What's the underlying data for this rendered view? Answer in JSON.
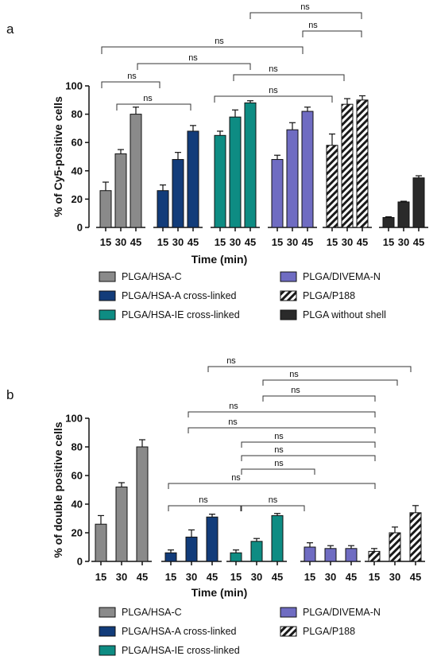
{
  "chart_data": [
    {
      "panel": "a",
      "type": "bar",
      "ylabel": "% of Cy5-positive cells",
      "xlabel": "Time (min)",
      "yticks": [
        0,
        20,
        40,
        60,
        80,
        100
      ],
      "ylim": [
        0,
        100
      ],
      "categories": [
        "15",
        "30",
        "45"
      ],
      "series": [
        {
          "name": "PLGA/HSA-C",
          "color": "#8a8a8a",
          "pattern": "solid",
          "values": [
            26,
            52,
            80
          ],
          "errors": [
            6,
            3,
            5
          ]
        },
        {
          "name": "PLGA/HSA-A cross-linked",
          "color": "#123c7a",
          "pattern": "solid",
          "values": [
            26,
            48,
            68
          ],
          "errors": [
            4,
            5,
            4
          ]
        },
        {
          "name": "PLGA/HSA-IE cross-linked",
          "color": "#0e8c83",
          "pattern": "solid",
          "values": [
            65,
            78,
            88
          ],
          "errors": [
            3,
            5,
            1.5
          ]
        },
        {
          "name": "PLGA/DIVEMA-N",
          "color": "#6f6cc2",
          "pattern": "solid",
          "values": [
            48,
            69,
            82
          ],
          "errors": [
            3,
            5,
            3
          ]
        },
        {
          "name": "PLGA/P188",
          "color": "#1a1a1a",
          "pattern": "hatch",
          "values": [
            58,
            87,
            90
          ],
          "errors": [
            8,
            4,
            3
          ]
        },
        {
          "name": "PLGA without shell",
          "color": "#2a2a2a",
          "pattern": "solid",
          "values": [
            7,
            18,
            35
          ],
          "errors": [
            0.5,
            0.5,
            1.5
          ]
        }
      ],
      "annotations": [
        {
          "label": "ns",
          "from": [
            0,
            1
          ],
          "to": [
            0,
            2
          ]
        },
        {
          "label": "ns",
          "from": [
            0,
            0
          ],
          "to": [
            0,
            2
          ]
        },
        {
          "label": "ns",
          "from": [
            0,
            1
          ],
          "to": [
            2,
            1
          ]
        },
        {
          "label": "ns",
          "from": [
            2,
            0
          ],
          "to": [
            3,
            2
          ]
        },
        {
          "label": "ns",
          "from": [
            2,
            1
          ],
          "to": [
            4,
            0
          ]
        },
        {
          "label": "ns",
          "from": [
            0,
            1
          ],
          "to": [
            3,
            2
          ]
        },
        {
          "label": "ns",
          "from": [
            3,
            2
          ],
          "to": [
            4,
            2
          ]
        },
        {
          "label": "ns",
          "from": [
            2,
            1
          ],
          "to": [
            4,
            2
          ]
        }
      ],
      "legend_columns": [
        [
          "PLGA/HSA-C",
          "PLGA/HSA-A cross-linked",
          "PLGA/HSA-IE cross-linked"
        ],
        [
          "PLGA/DIVEMA-N",
          "PLGA/P188",
          "PLGA without shell"
        ]
      ]
    },
    {
      "panel": "b",
      "type": "bar",
      "ylabel": "% of double positive cells",
      "xlabel": "Time (min)",
      "yticks": [
        0,
        20,
        40,
        60,
        80,
        100
      ],
      "ylim": [
        0,
        100
      ],
      "categories": [
        "15",
        "30",
        "45"
      ],
      "series": [
        {
          "name": "PLGA/HSA-C",
          "color": "#8a8a8a",
          "pattern": "solid",
          "values": [
            26,
            52,
            80
          ],
          "errors": [
            6,
            3,
            5
          ]
        },
        {
          "name": "PLGA/HSA-A cross-linked",
          "color": "#123c7a",
          "pattern": "solid",
          "values": [
            6,
            17,
            31
          ],
          "errors": [
            2,
            5,
            2
          ]
        },
        {
          "name": "PLGA/HSA-IE cross-linked",
          "color": "#0e8c83",
          "pattern": "solid",
          "values": [
            6,
            14,
            32
          ],
          "errors": [
            2,
            2,
            1.5
          ]
        },
        {
          "name": "PLGA/DIVEMA-N",
          "color": "#6f6cc2",
          "pattern": "solid",
          "values": [
            10,
            9,
            9
          ],
          "errors": [
            3,
            2,
            2
          ]
        },
        {
          "name": "PLGA/P188",
          "color": "#1a1a1a",
          "pattern": "hatch",
          "values": [
            7,
            20,
            34
          ],
          "errors": [
            2,
            4,
            5
          ]
        }
      ],
      "annotations": [
        {
          "label": "ns",
          "from": [
            1,
            0
          ],
          "to": [
            2,
            0
          ]
        },
        {
          "label": "ns",
          "from": [
            1,
            0
          ],
          "to": [
            3,
            0
          ]
        },
        {
          "label": "ns",
          "from": [
            2,
            1
          ],
          "to": [
            3,
            0
          ]
        },
        {
          "label": "ns",
          "from": [
            2,
            1
          ],
          "to": [
            4,
            0
          ]
        },
        {
          "label": "ns",
          "from": [
            3,
            0
          ],
          "to": [
            4,
            0
          ]
        },
        {
          "label": "ns",
          "from": [
            1,
            1
          ],
          "to": [
            4,
            0
          ]
        },
        {
          "label": "ns",
          "from": [
            1,
            0
          ],
          "to": [
            4,
            0
          ]
        },
        {
          "label": "ns",
          "from": [
            2,
            1
          ],
          "to": [
            3,
            2
          ]
        },
        {
          "label": "ns",
          "from": [
            2,
            1
          ],
          "to": [
            4,
            1
          ]
        },
        {
          "label": "ns",
          "from": [
            1,
            2
          ],
          "to": [
            2,
            2
          ]
        },
        {
          "label": "ns",
          "from": [
            2,
            2
          ],
          "to": [
            4,
            2
          ]
        }
      ],
      "legend_columns": [
        [
          "PLGA/HSA-C",
          "PLGA/HSA-A cross-linked",
          "PLGA/HSA-IE cross-linked"
        ],
        [
          "PLGA/DIVEMA-N",
          "PLGA/P188"
        ]
      ]
    }
  ]
}
